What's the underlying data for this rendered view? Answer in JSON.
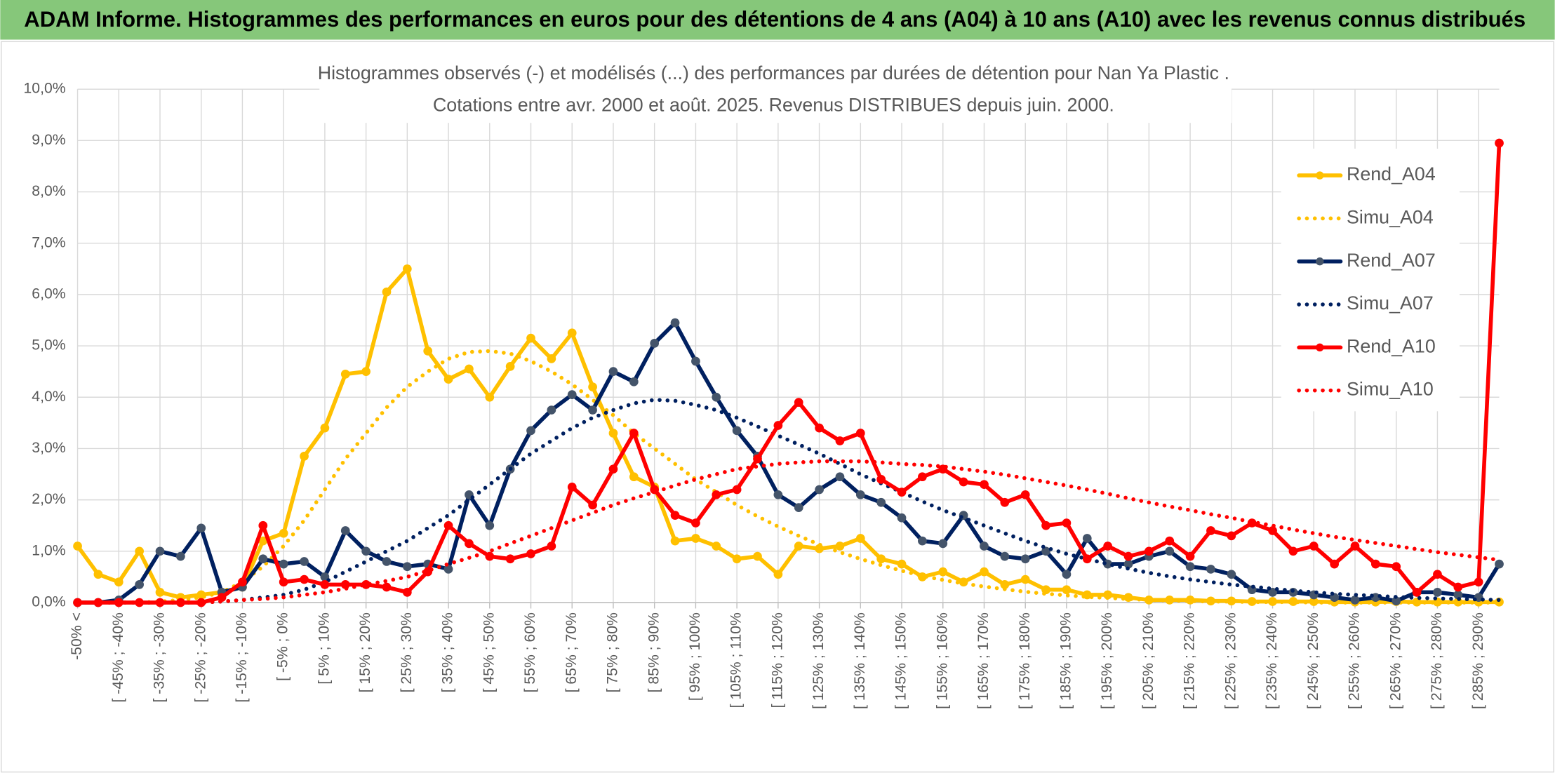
{
  "header": {
    "title": "ADAM Informe. Histogrammes des performances en euros pour des détentions de 4 ans (A04) à 10 ans (A10) avec les revenus connus distribués"
  },
  "chart_data": {
    "type": "line",
    "title": "Histogrammes observés (-) et modélisés (...) des performances par durées de détention pour Nan Ya Plastic .",
    "subtitle": "Cotations entre avr. 2000 et août. 2025. Revenus DISTRIBUES depuis juin. 2000.",
    "categories": [
      "-50% <",
      null,
      "[ -45% ; -40%",
      null,
      "[ -35% ; -30%",
      null,
      "[ -25% ; -20%",
      null,
      "[ -15% ; -10%",
      null,
      "[ -5% ; 0%",
      null,
      "[ 5% ; 10%",
      null,
      "[ 15% ; 20%",
      null,
      "[ 25% ; 30%",
      null,
      "[ 35% ; 40%",
      null,
      "[ 45% ; 50%",
      null,
      "[ 55% ; 60%",
      null,
      "[ 65% ; 70%",
      null,
      "[ 75% ; 80%",
      null,
      "[ 85% ; 90%",
      null,
      "[ 95% ; 100%",
      null,
      "[ 105% ; 110%",
      null,
      "[ 115% ; 120%",
      null,
      "[ 125% ; 130%",
      null,
      "[ 135% ; 140%",
      null,
      "[ 145% ; 150%",
      null,
      "[ 155% ; 160%",
      null,
      "[ 165% ; 170%",
      null,
      "[ 175% ; 180%",
      null,
      "[ 185% ; 190%",
      null,
      "[ 195% ; 200%",
      null,
      "[ 205% ; 210%",
      null,
      "[ 215% ; 220%",
      null,
      "[ 225% ; 230%",
      null,
      "[ 235% ; 240%",
      null,
      "[ 245% ; 250%",
      null,
      "[ 255% ; 260%",
      null,
      "[ 265% ; 270%",
      null,
      "[ 275% ; 280%",
      null,
      "[ 285% ; 290%",
      null
    ],
    "ylim": [
      0,
      10
    ],
    "yticks": [
      {
        "value": 0,
        "label": "0,0%"
      },
      {
        "value": 1,
        "label": "1,0%"
      },
      {
        "value": 2,
        "label": "2,0%"
      },
      {
        "value": 3,
        "label": "3,0%"
      },
      {
        "value": 4,
        "label": "4,0%"
      },
      {
        "value": 5,
        "label": "5,0%"
      },
      {
        "value": 6,
        "label": "6,0%"
      },
      {
        "value": 7,
        "label": "7,0%"
      },
      {
        "value": 8,
        "label": "8,0%"
      },
      {
        "value": 9,
        "label": "9,0%"
      },
      {
        "value": 10,
        "label": "10,0%"
      }
    ],
    "grid": true,
    "legend": "right",
    "series": [
      {
        "name": "Rend_A04",
        "color": "#ffc000",
        "style": "solid",
        "marker": true,
        "values": [
          1.1,
          0.55,
          0.4,
          1.0,
          0.2,
          0.1,
          0.15,
          0.2,
          0.3,
          1.2,
          1.35,
          2.85,
          3.4,
          4.45,
          4.5,
          6.05,
          6.5,
          4.9,
          4.35,
          4.55,
          4.0,
          4.6,
          5.15,
          4.75,
          5.25,
          4.2,
          3.3,
          2.45,
          2.25,
          1.2,
          1.25,
          1.1,
          0.85,
          0.9,
          0.55,
          1.1,
          1.05,
          1.1,
          1.25,
          0.85,
          0.75,
          0.5,
          0.6,
          0.4,
          0.6,
          0.35,
          0.45,
          0.25,
          0.25,
          0.15,
          0.15,
          0.1,
          0.05,
          0.05,
          0.05,
          0.03,
          0.03,
          0.02,
          0.02,
          0.02,
          0.02,
          0.01,
          0.01,
          0.01,
          0.02,
          0.01,
          0.01,
          0.01,
          0.01,
          0.01
        ]
      },
      {
        "name": "Simu_A04",
        "color": "#ffc000",
        "style": "dotted",
        "marker": false,
        "values": [
          0,
          0,
          0,
          0,
          0.02,
          0.05,
          0.1,
          0.2,
          0.4,
          0.7,
          1.1,
          1.6,
          2.2,
          2.8,
          3.3,
          3.8,
          4.2,
          4.5,
          4.75,
          4.88,
          4.9,
          4.85,
          4.7,
          4.5,
          4.25,
          3.95,
          3.65,
          3.3,
          3.0,
          2.7,
          2.4,
          2.15,
          1.9,
          1.68,
          1.48,
          1.3,
          1.13,
          0.98,
          0.85,
          0.73,
          0.62,
          0.52,
          0.44,
          0.37,
          0.31,
          0.26,
          0.21,
          0.17,
          0.14,
          0.11,
          0.09,
          0.07,
          0.05,
          0.04,
          0.03,
          0.02,
          0.02,
          0.01,
          0.01,
          0.01,
          0,
          0,
          0,
          0,
          0,
          0,
          0,
          0,
          0,
          0
        ]
      },
      {
        "name": "Rend_A07",
        "color": "#002060",
        "marker_color": "#44546a",
        "style": "solid",
        "marker": true,
        "values": [
          0,
          0,
          0.05,
          0.35,
          1.0,
          0.9,
          1.45,
          0.2,
          0.3,
          0.85,
          0.75,
          0.8,
          0.5,
          1.4,
          1.0,
          0.8,
          0.7,
          0.75,
          0.65,
          2.1,
          1.5,
          2.6,
          3.35,
          3.75,
          4.05,
          3.75,
          4.5,
          4.3,
          5.05,
          5.45,
          4.7,
          4.0,
          3.35,
          2.85,
          2.1,
          1.85,
          2.2,
          2.45,
          2.1,
          1.95,
          1.65,
          1.2,
          1.15,
          1.7,
          1.1,
          0.9,
          0.85,
          1.0,
          0.55,
          1.25,
          0.75,
          0.75,
          0.9,
          1.0,
          0.7,
          0.65,
          0.55,
          0.25,
          0.2,
          0.2,
          0.15,
          0.1,
          0.05,
          0.1,
          0.03,
          0.2,
          0.2,
          0.15,
          0.1,
          0.75
        ]
      },
      {
        "name": "Simu_A07",
        "color": "#002060",
        "style": "dotted",
        "marker": false,
        "values": [
          0,
          0,
          0,
          0,
          0,
          0,
          0,
          0.02,
          0.05,
          0.1,
          0.15,
          0.25,
          0.4,
          0.6,
          0.8,
          1.0,
          1.2,
          1.45,
          1.7,
          2.0,
          2.3,
          2.6,
          2.9,
          3.15,
          3.4,
          3.6,
          3.75,
          3.88,
          3.95,
          3.93,
          3.85,
          3.75,
          3.6,
          3.43,
          3.25,
          3.08,
          2.9,
          2.7,
          2.5,
          2.32,
          2.15,
          1.97,
          1.8,
          1.65,
          1.5,
          1.35,
          1.2,
          1.07,
          0.95,
          0.85,
          0.75,
          0.66,
          0.58,
          0.51,
          0.45,
          0.4,
          0.35,
          0.31,
          0.27,
          0.23,
          0.2,
          0.17,
          0.15,
          0.13,
          0.11,
          0.09,
          0.08,
          0.07,
          0.06,
          0.05
        ]
      },
      {
        "name": "Rend_A10",
        "color": "#ff0000",
        "style": "solid",
        "marker": true,
        "values": [
          0,
          0,
          0,
          0,
          0,
          0,
          0,
          0.1,
          0.4,
          1.5,
          0.4,
          0.45,
          0.35,
          0.35,
          0.35,
          0.3,
          0.2,
          0.6,
          1.5,
          1.15,
          0.9,
          0.85,
          0.95,
          1.1,
          2.25,
          1.9,
          2.6,
          3.3,
          2.2,
          1.7,
          1.55,
          2.1,
          2.2,
          2.8,
          3.45,
          3.9,
          3.4,
          3.15,
          3.3,
          2.4,
          2.15,
          2.45,
          2.6,
          2.35,
          2.3,
          1.95,
          2.1,
          1.5,
          1.55,
          0.85,
          1.1,
          0.9,
          1.0,
          1.2,
          0.9,
          1.4,
          1.3,
          1.55,
          1.4,
          1.0,
          1.1,
          0.75,
          1.1,
          0.75,
          0.7,
          0.2,
          0.55,
          0.3,
          0.4,
          8.95
        ]
      },
      {
        "name": "Simu_A10",
        "color": "#ff0000",
        "style": "dotted",
        "marker": false,
        "values": [
          0,
          0,
          0,
          0,
          0,
          0,
          0,
          0.02,
          0.05,
          0.07,
          0.1,
          0.15,
          0.2,
          0.27,
          0.35,
          0.42,
          0.5,
          0.62,
          0.75,
          0.87,
          1.0,
          1.15,
          1.3,
          1.45,
          1.6,
          1.75,
          1.9,
          2.03,
          2.15,
          2.28,
          2.4,
          2.5,
          2.6,
          2.65,
          2.7,
          2.73,
          2.75,
          2.75,
          2.75,
          2.73,
          2.7,
          2.68,
          2.65,
          2.6,
          2.55,
          2.49,
          2.42,
          2.35,
          2.28,
          2.2,
          2.12,
          2.03,
          1.95,
          1.87,
          1.8,
          1.72,
          1.65,
          1.57,
          1.5,
          1.42,
          1.35,
          1.28,
          1.22,
          1.16,
          1.1,
          1.04,
          0.98,
          0.93,
          0.88,
          0.83
        ]
      }
    ]
  }
}
